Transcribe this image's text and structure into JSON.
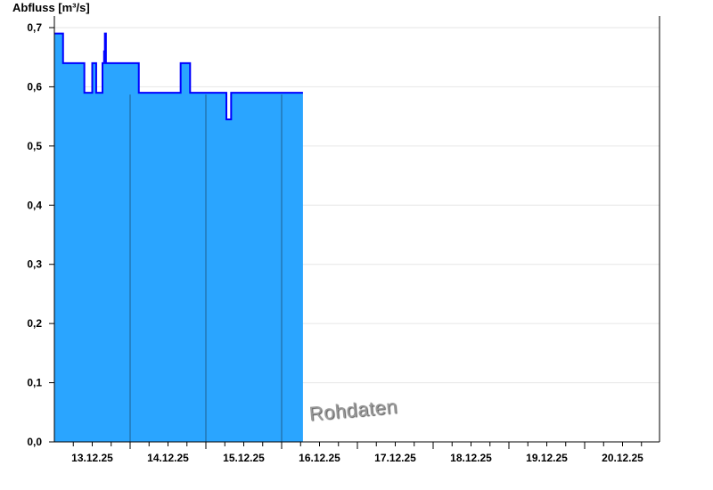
{
  "chart_data": {
    "type": "area",
    "step": true,
    "ylabel": "Abfluss [m³/s]",
    "ylim": [
      0,
      0.7
    ],
    "yticks": [
      "0,0",
      "0,1",
      "0,2",
      "0,3",
      "0,4",
      "0,5",
      "0,6",
      "0,7"
    ],
    "xlim": [
      "13.12.25 00:00",
      "21.12.25 00:00"
    ],
    "xtick_labels": [
      "13.12.25",
      "14.12.25",
      "15.12.25",
      "16.12.25",
      "17.12.25",
      "18.12.25",
      "19.12.25",
      "20.12.25"
    ],
    "grid": true,
    "fill_color": "#2aa5ff",
    "line_color": "#0000ff",
    "watermark": "Rohdaten",
    "points": [
      [
        "13.12.25 00:00",
        0.69
      ],
      [
        "13.12.25 02:45",
        0.64
      ],
      [
        "13.12.25 09:30",
        0.59
      ],
      [
        "13.12.25 12:00",
        0.64
      ],
      [
        "13.12.25 13:15",
        0.59
      ],
      [
        "13.12.25 15:15",
        0.64
      ],
      [
        "13.12.25 15:45",
        0.66
      ],
      [
        "13.12.25 16:00",
        0.69
      ],
      [
        "13.12.25 16:20",
        0.64
      ],
      [
        "14.12.25 02:45",
        0.59
      ],
      [
        "14.12.25 16:00",
        0.64
      ],
      [
        "14.12.25 19:00",
        0.59
      ],
      [
        "15.12.25 06:30",
        0.545
      ],
      [
        "15.12.25 08:00",
        0.59
      ],
      [
        "16.12.25 06:45",
        0.59
      ]
    ]
  }
}
